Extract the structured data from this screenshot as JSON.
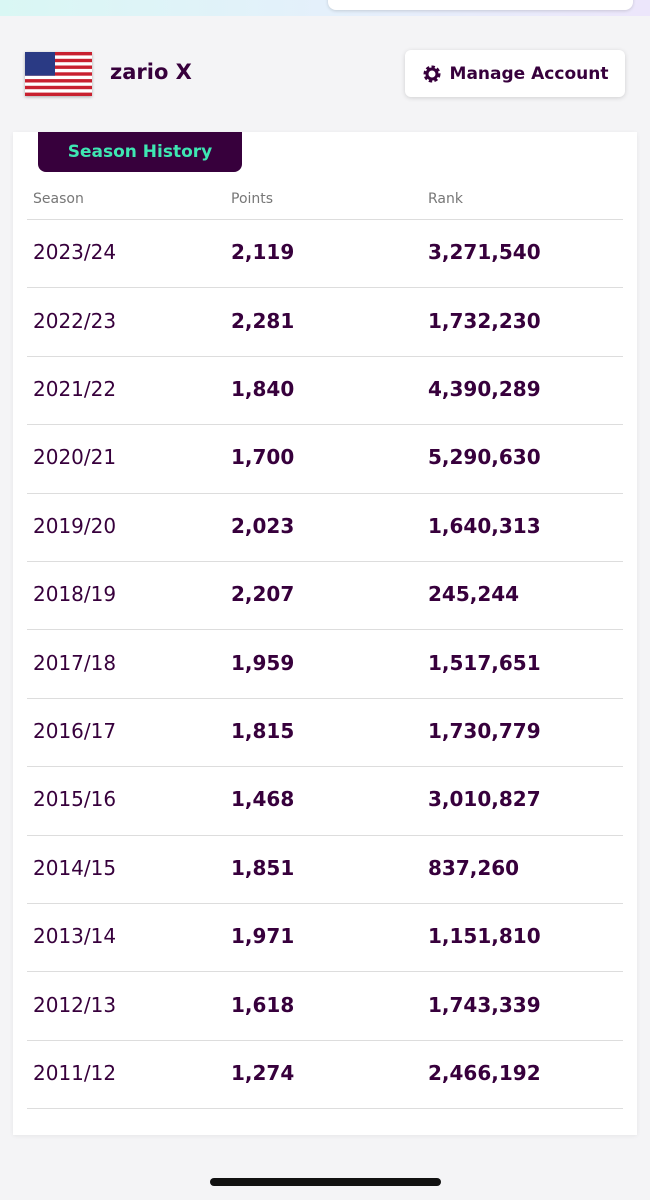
{
  "header": {
    "name": "zario X",
    "button": "Manage Account"
  },
  "tab": "Season History",
  "table": {
    "columns": [
      "Season",
      "Points",
      "Rank"
    ],
    "rows": [
      [
        "2023/24",
        "2,119",
        "3,271,540"
      ],
      [
        "2022/23",
        "2,281",
        "1,732,230"
      ],
      [
        "2021/22",
        "1,840",
        "4,390,289"
      ],
      [
        "2020/21",
        "1,700",
        "5,290,630"
      ],
      [
        "2019/20",
        "2,023",
        "1,640,313"
      ],
      [
        "2018/19",
        "2,207",
        "245,244"
      ],
      [
        "2017/18",
        "1,959",
        "1,517,651"
      ],
      [
        "2016/17",
        "1,815",
        "1,730,779"
      ],
      [
        "2015/16",
        "1,468",
        "3,010,827"
      ],
      [
        "2014/15",
        "1,851",
        "837,260"
      ],
      [
        "2013/14",
        "1,971",
        "1,151,810"
      ],
      [
        "2012/13",
        "1,618",
        "1,743,339"
      ],
      [
        "2011/12",
        "1,274",
        "2,466,192"
      ]
    ]
  }
}
